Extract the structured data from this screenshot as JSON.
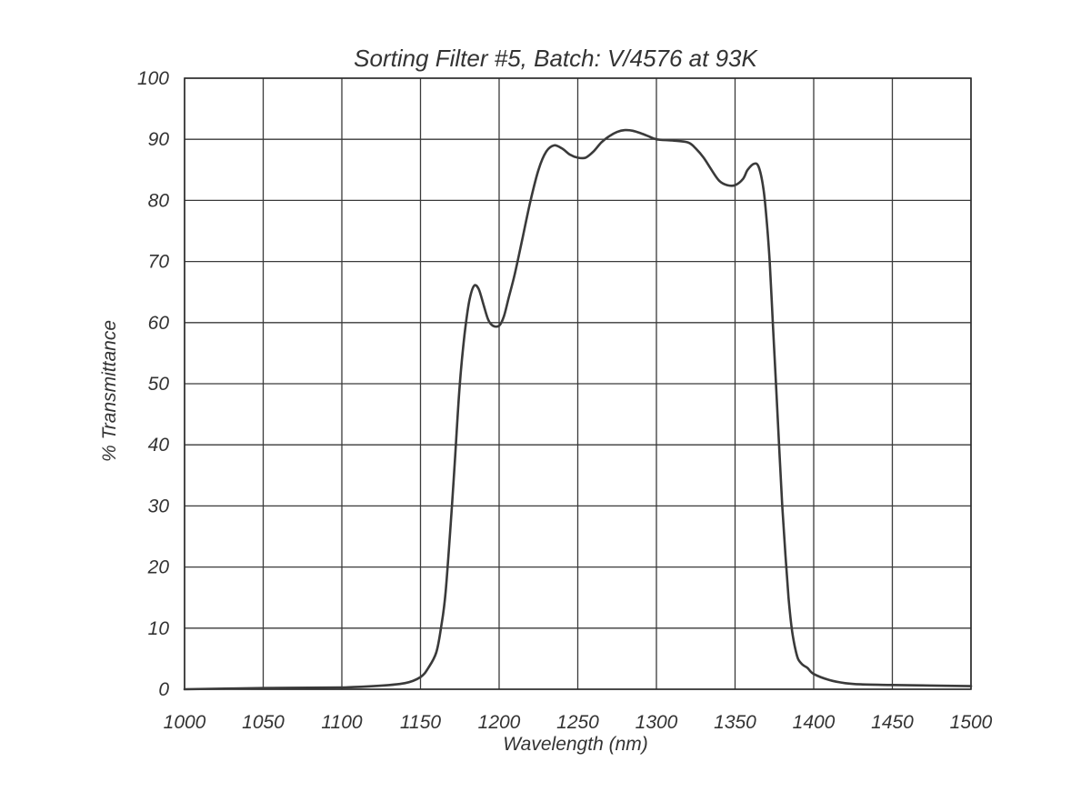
{
  "chart_data": {
    "type": "line",
    "title": "Sorting Filter #5, Batch: V/4576  at 93K",
    "xlabel": "Wavelength (nm)",
    "ylabel": "% Transmittance",
    "xlim": [
      1000,
      1500
    ],
    "ylim": [
      0,
      100
    ],
    "xticks": [
      1000,
      1050,
      1100,
      1150,
      1200,
      1250,
      1300,
      1350,
      1400,
      1450,
      1500
    ],
    "yticks": [
      0,
      10,
      20,
      30,
      40,
      50,
      60,
      70,
      80,
      90,
      100
    ],
    "grid": true,
    "series": [
      {
        "color": "#3a3a3a",
        "x": [
          1000,
          1050,
          1100,
          1120,
          1140,
          1150,
          1155,
          1160,
          1163,
          1166,
          1170,
          1172,
          1175,
          1178,
          1181,
          1184,
          1187,
          1190,
          1193,
          1196,
          1200,
          1203,
          1206,
          1210,
          1215,
          1220,
          1225,
          1230,
          1235,
          1240,
          1245,
          1250,
          1255,
          1260,
          1265,
          1270,
          1275,
          1280,
          1285,
          1290,
          1295,
          1300,
          1310,
          1320,
          1325,
          1330,
          1335,
          1340,
          1345,
          1350,
          1355,
          1358,
          1362,
          1365,
          1368,
          1370,
          1372,
          1374,
          1376,
          1378,
          1380,
          1382,
          1384,
          1386,
          1388,
          1390,
          1393,
          1396,
          1400,
          1410,
          1420,
          1430,
          1450,
          1500
        ],
        "y": [
          0,
          0.2,
          0.3,
          0.5,
          1.0,
          2.0,
          3.5,
          6.0,
          10.0,
          16.0,
          30.0,
          38.0,
          50.0,
          58.0,
          63.5,
          66.0,
          65.5,
          63.0,
          60.5,
          59.5,
          59.5,
          61.0,
          64.0,
          68.0,
          74.0,
          80.0,
          85.0,
          88.0,
          89.0,
          88.5,
          87.5,
          87.0,
          87.0,
          88.0,
          89.5,
          90.5,
          91.2,
          91.5,
          91.4,
          91.0,
          90.5,
          90.0,
          89.8,
          89.5,
          88.5,
          87.0,
          85.0,
          83.2,
          82.5,
          82.5,
          83.5,
          85.0,
          86.0,
          85.5,
          82.0,
          77.0,
          70.0,
          60.0,
          50.0,
          40.0,
          30.0,
          22.0,
          15.0,
          10.0,
          7.0,
          5.0,
          4.0,
          3.5,
          2.5,
          1.5,
          1.0,
          0.8,
          0.7,
          0.5
        ]
      }
    ]
  }
}
